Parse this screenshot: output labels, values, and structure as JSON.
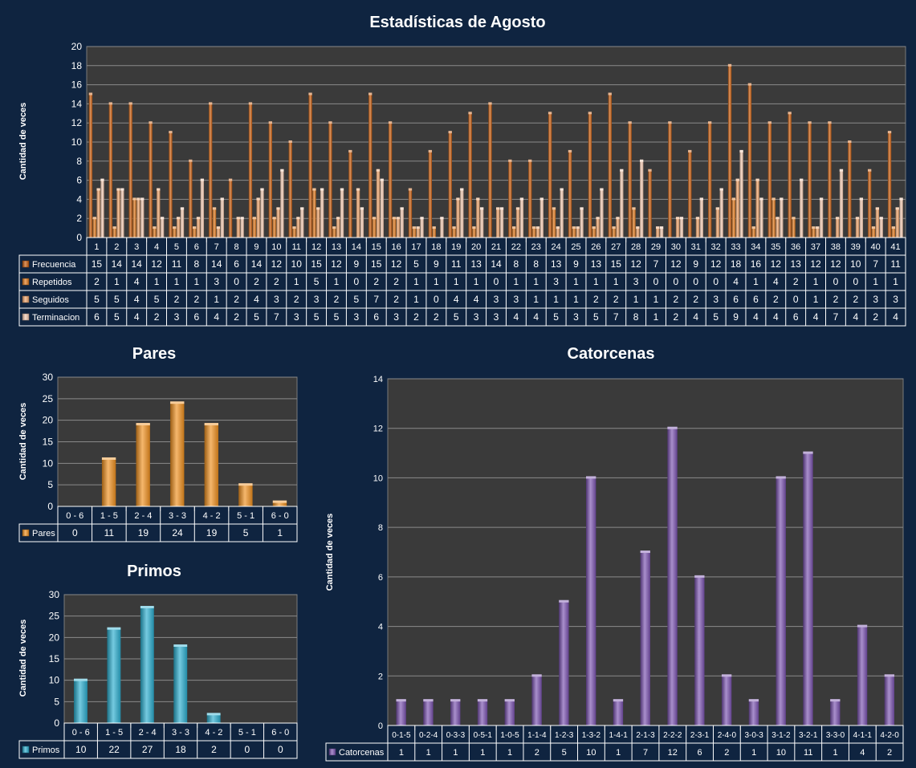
{
  "chart_data": [
    {
      "id": "agosto",
      "type": "bar",
      "title": "Estadísticas de Agosto",
      "ylabel": "Cantidad de veces",
      "ylim": [
        0,
        20
      ],
      "yticks": [
        0,
        2,
        4,
        6,
        8,
        10,
        12,
        14,
        16,
        18,
        20
      ],
      "grid": true,
      "legend": "table-below",
      "categories": [
        "1",
        "2",
        "3",
        "4",
        "5",
        "6",
        "7",
        "8",
        "9",
        "10",
        "11",
        "12",
        "13",
        "14",
        "15",
        "16",
        "17",
        "18",
        "19",
        "20",
        "21",
        "22",
        "23",
        "24",
        "25",
        "26",
        "27",
        "28",
        "29",
        "30",
        "31",
        "32",
        "33",
        "34",
        "35",
        "36",
        "37",
        "38",
        "39",
        "40",
        "41"
      ],
      "series": [
        {
          "name": "Frecuencia",
          "color": "#c85a0a",
          "values": [
            15,
            14,
            14,
            12,
            11,
            8,
            14,
            6,
            14,
            12,
            10,
            15,
            12,
            9,
            15,
            12,
            5,
            9,
            11,
            13,
            14,
            8,
            8,
            13,
            9,
            13,
            15,
            12,
            7,
            12,
            9,
            12,
            18,
            16,
            12,
            13,
            12,
            12,
            10,
            7,
            11
          ]
        },
        {
          "name": "Repetidos",
          "color": "#e0781a",
          "values": [
            2,
            1,
            4,
            1,
            1,
            1,
            3,
            0,
            2,
            2,
            1,
            5,
            1,
            0,
            2,
            2,
            1,
            1,
            1,
            1,
            0,
            1,
            1,
            3,
            1,
            1,
            1,
            3,
            0,
            0,
            0,
            0,
            4,
            1,
            4,
            2,
            1,
            0,
            0,
            1,
            1
          ]
        },
        {
          "name": "Seguidos",
          "color": "#f0a46a",
          "values": [
            5,
            5,
            4,
            5,
            2,
            2,
            1,
            2,
            4,
            3,
            2,
            3,
            2,
            5,
            7,
            2,
            1,
            0,
            4,
            4,
            3,
            3,
            1,
            1,
            1,
            2,
            2,
            1,
            1,
            2,
            2,
            3,
            6,
            6,
            2,
            0,
            1,
            2,
            2,
            3,
            3
          ]
        },
        {
          "name": "Terminacion",
          "color": "#f4c9b0",
          "values": [
            6,
            5,
            4,
            2,
            3,
            6,
            4,
            2,
            5,
            7,
            3,
            5,
            5,
            3,
            6,
            3,
            2,
            2,
            5,
            3,
            3,
            4,
            4,
            5,
            3,
            5,
            7,
            8,
            1,
            2,
            4,
            5,
            9,
            4,
            4,
            6,
            4,
            7,
            4,
            2,
            4
          ]
        }
      ]
    },
    {
      "id": "pares",
      "type": "bar",
      "title": "Pares",
      "ylabel": "Cantidad de veces",
      "ylim": [
        0,
        30
      ],
      "yticks": [
        0,
        5,
        10,
        15,
        20,
        25,
        30
      ],
      "grid": true,
      "legend": "table-below",
      "categories": [
        "0 - 6",
        "1 - 5",
        "2 - 4",
        "3 - 3",
        "4 - 2",
        "5 - 1",
        "6 - 0"
      ],
      "series": [
        {
          "name": "Pares",
          "color": "#f0901e",
          "values": [
            0,
            11,
            19,
            24,
            19,
            5,
            1
          ]
        }
      ]
    },
    {
      "id": "primos",
      "type": "bar",
      "title": "Primos",
      "ylabel": "Cantidad de veces",
      "ylim": [
        0,
        30
      ],
      "yticks": [
        0,
        5,
        10,
        15,
        20,
        25,
        30
      ],
      "grid": true,
      "legend": "table-below",
      "categories": [
        "0 - 6",
        "1 - 5",
        "2 - 4",
        "3 - 3",
        "4 - 2",
        "5 - 1",
        "6 - 0"
      ],
      "series": [
        {
          "name": "Primos",
          "color": "#2aaed0",
          "values": [
            10,
            22,
            27,
            18,
            2,
            0,
            0
          ]
        }
      ]
    },
    {
      "id": "catorcenas",
      "type": "bar",
      "title": "Catorcenas",
      "ylabel": "Cantidad de veces",
      "ylim": [
        0,
        14
      ],
      "yticks": [
        0,
        2,
        4,
        6,
        8,
        10,
        12,
        14
      ],
      "grid": true,
      "legend": "table-below",
      "categories": [
        "0-1-5",
        "0-2-4",
        "0-3-3",
        "0-5-1",
        "1-0-5",
        "1-1-4",
        "1-2-3",
        "1-3-2",
        "1-4-1",
        "2-1-3",
        "2-2-2",
        "2-3-1",
        "2-4-0",
        "3-0-3",
        "3-1-2",
        "3-2-1",
        "3-3-0",
        "4-1-1",
        "4-2-0"
      ],
      "series": [
        {
          "name": "Catorcenas",
          "color": "#7a52b0",
          "values": [
            1,
            1,
            1,
            1,
            1,
            2,
            5,
            10,
            1,
            7,
            12,
            6,
            2,
            1,
            10,
            11,
            1,
            4,
            2
          ]
        }
      ]
    }
  ]
}
